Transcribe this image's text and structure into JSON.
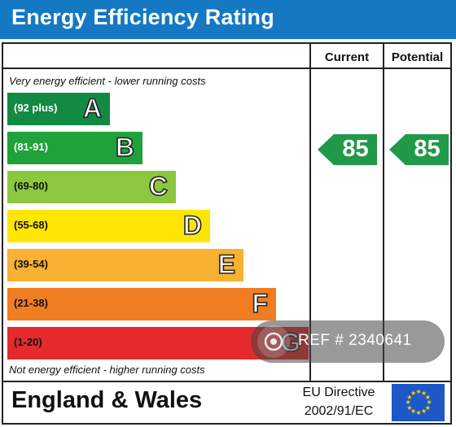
{
  "header": {
    "title": "Energy Efficiency Rating"
  },
  "columns": {
    "current": "Current",
    "potential": "Potential"
  },
  "notes": {
    "top": "Very energy efficient - lower running costs",
    "bottom": "Not energy efficient - higher running costs"
  },
  "bands": [
    {
      "range": "(92 plus)",
      "letter": "A",
      "color": "#128a43",
      "text_color": "#ffffff"
    },
    {
      "range": "(81-91)",
      "letter": "B",
      "color": "#1fa23a",
      "text_color": "#ffffff"
    },
    {
      "range": "(69-80)",
      "letter": "C",
      "color": "#8dc63f",
      "text_color": "#111111"
    },
    {
      "range": "(55-68)",
      "letter": "D",
      "color": "#ffe600",
      "text_color": "#111111"
    },
    {
      "range": "(39-54)",
      "letter": "E",
      "color": "#f8b131",
      "text_color": "#111111"
    },
    {
      "range": "(21-38)",
      "letter": "F",
      "color": "#f07d22",
      "text_color": "#111111"
    },
    {
      "range": "(1-20)",
      "letter": "G",
      "color": "#e52a2e",
      "text_color": "#111111"
    }
  ],
  "ratings": {
    "current": "85",
    "potential": "85",
    "band": "B",
    "arrow_color": "#21994a"
  },
  "footer": {
    "region": "England & Wales",
    "directive_line1": "EU Directive",
    "directive_line2": "2002/91/EC"
  },
  "watermark": {
    "text": "REF # 2340641",
    "icon": "camera-icon"
  }
}
